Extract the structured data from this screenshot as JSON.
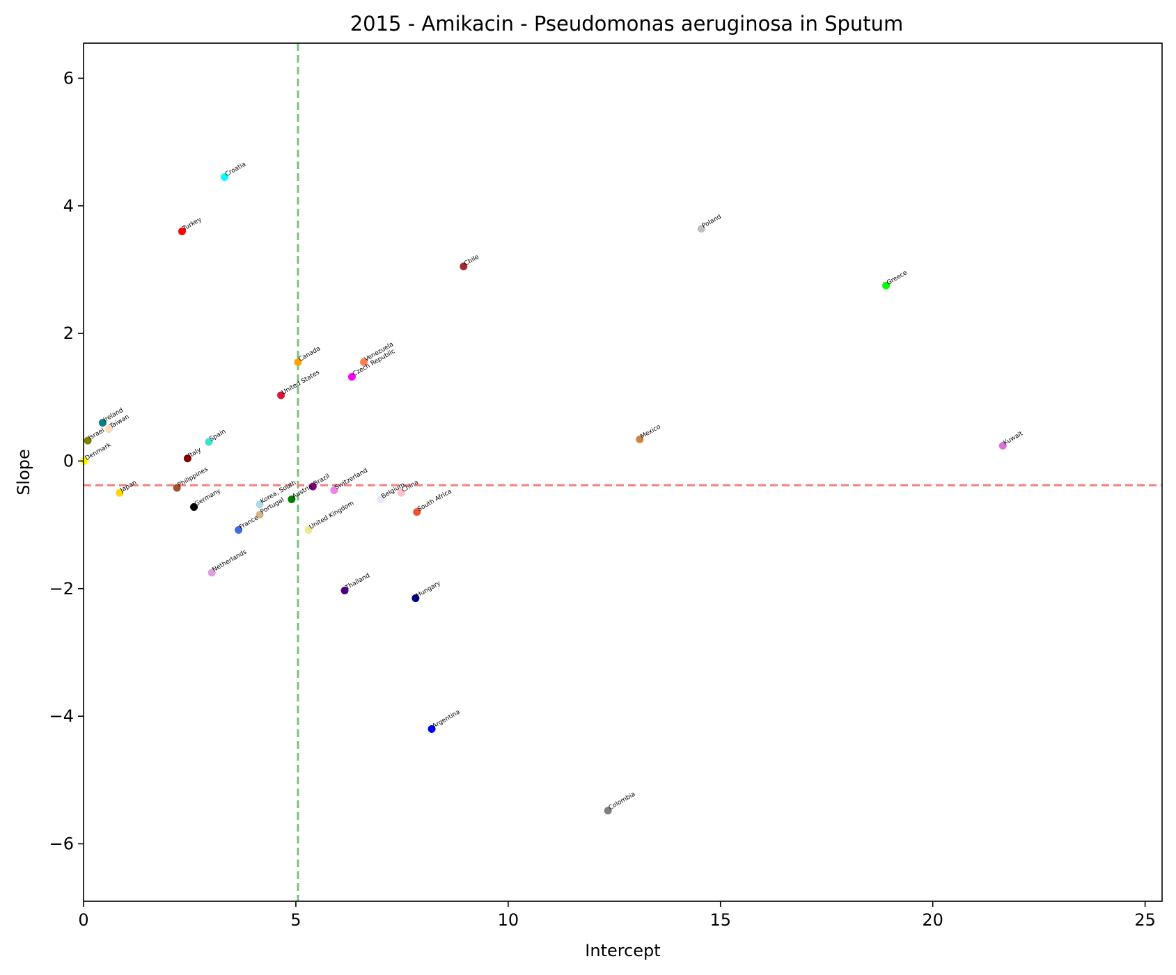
{
  "chart_data": {
    "type": "scatter",
    "title": "2015 - Amikacin - Pseudomonas aeruginosa in Sputum",
    "xlabel": "Intercept",
    "ylabel": "Slope",
    "xlim": [
      0,
      25.4
    ],
    "ylim": [
      -6.9,
      6.55
    ],
    "xticks": [
      0,
      5,
      10,
      15,
      20,
      25
    ],
    "yticks": [
      -6,
      -4,
      -2,
      0,
      2,
      4,
      6
    ],
    "xtick_labels": [
      "0",
      "5",
      "10",
      "15",
      "20",
      "25"
    ],
    "ytick_labels": [
      "−6",
      "−4",
      "−2",
      "0",
      "2",
      "4",
      "6"
    ],
    "grid": false,
    "reference_lines": {
      "vertical_x": 5.05,
      "vertical_color": "#7fbf7f",
      "horizontal_y": -0.38,
      "horizontal_color": "#f28080"
    },
    "points": [
      {
        "label": "Croatia",
        "x": 3.32,
        "y": 4.45,
        "color": "#00ffff"
      },
      {
        "label": "Turkey",
        "x": 2.32,
        "y": 3.6,
        "color": "#ff0000"
      },
      {
        "label": "Poland",
        "x": 14.55,
        "y": 3.64,
        "color": "#bfbfbf"
      },
      {
        "label": "Chile",
        "x": 8.95,
        "y": 3.05,
        "color": "#a52a2a"
      },
      {
        "label": "Greece",
        "x": 18.9,
        "y": 2.75,
        "color": "#00ff00"
      },
      {
        "label": "Canada",
        "x": 5.05,
        "y": 1.55,
        "color": "#ffa500"
      },
      {
        "label": "Venezuela",
        "x": 6.6,
        "y": 1.55,
        "color": "#ff7f50"
      },
      {
        "label": "Czech Republic",
        "x": 6.32,
        "y": 1.32,
        "color": "#ff00ff"
      },
      {
        "label": "United States",
        "x": 4.65,
        "y": 1.03,
        "color": "#dc143c"
      },
      {
        "label": "Ireland",
        "x": 0.45,
        "y": 0.6,
        "color": "#008080"
      },
      {
        "label": "Taiwan",
        "x": 0.6,
        "y": 0.5,
        "color": "#ffdab9"
      },
      {
        "label": "Israel",
        "x": 0.1,
        "y": 0.32,
        "color": "#808000"
      },
      {
        "label": "Spain",
        "x": 2.95,
        "y": 0.3,
        "color": "#40e0d0"
      },
      {
        "label": "Mexico",
        "x": 13.1,
        "y": 0.34,
        "color": "#cd853f"
      },
      {
        "label": "Kuwait",
        "x": 21.65,
        "y": 0.24,
        "color": "#da70d6"
      },
      {
        "label": "Italy",
        "x": 2.45,
        "y": 0.04,
        "color": "#800000"
      },
      {
        "label": "Denmark",
        "x": 0.02,
        "y": 0.0,
        "color": "#ffff00"
      },
      {
        "label": "Philippines",
        "x": 2.2,
        "y": -0.42,
        "color": "#a0522d"
      },
      {
        "label": "Japan",
        "x": 0.85,
        "y": -0.5,
        "color": "#ffd700"
      },
      {
        "label": "Brazil",
        "x": 5.4,
        "y": -0.4,
        "color": "#800080"
      },
      {
        "label": "Switzerland",
        "x": 5.9,
        "y": -0.46,
        "color": "#ee82ee"
      },
      {
        "label": "China",
        "x": 7.48,
        "y": -0.5,
        "color": "#ffc0cb"
      },
      {
        "label": "Belgium",
        "x": 7.0,
        "y": -0.6,
        "color": "#e6e6fa"
      },
      {
        "label": "Austria",
        "x": 4.9,
        "y": -0.6,
        "color": "#008000"
      },
      {
        "label": "Korea, South",
        "x": 4.15,
        "y": -0.68,
        "color": "#add8e6"
      },
      {
        "label": "Germany",
        "x": 2.6,
        "y": -0.72,
        "color": "#000000"
      },
      {
        "label": "South Africa",
        "x": 7.85,
        "y": -0.8,
        "color": "#f05030"
      },
      {
        "label": "Portugal",
        "x": 4.15,
        "y": -0.84,
        "color": "#d2b48c"
      },
      {
        "label": "France",
        "x": 3.65,
        "y": -1.08,
        "color": "#4169e1"
      },
      {
        "label": "United Kingdom",
        "x": 5.3,
        "y": -1.08,
        "color": "#f0e68c"
      },
      {
        "label": "Netherlands",
        "x": 3.02,
        "y": -1.75,
        "color": "#dda0dd"
      },
      {
        "label": "Thailand",
        "x": 6.15,
        "y": -2.03,
        "color": "#4b0082"
      },
      {
        "label": "Hungary",
        "x": 7.82,
        "y": -2.15,
        "color": "#000080"
      },
      {
        "label": "Argentina",
        "x": 8.2,
        "y": -4.2,
        "color": "#0000ff"
      },
      {
        "label": "Colombia",
        "x": 12.35,
        "y": -5.48,
        "color": "#808080"
      }
    ]
  }
}
